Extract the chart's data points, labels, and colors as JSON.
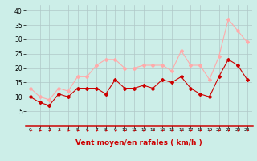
{
  "x": [
    0,
    1,
    2,
    3,
    4,
    5,
    6,
    7,
    8,
    9,
    10,
    11,
    12,
    13,
    14,
    15,
    16,
    17,
    18,
    19,
    20,
    21,
    22,
    23
  ],
  "wind_avg": [
    10,
    8,
    7,
    11,
    10,
    13,
    13,
    13,
    11,
    16,
    13,
    13,
    14,
    13,
    16,
    15,
    17,
    13,
    11,
    10,
    17,
    23,
    21,
    16
  ],
  "wind_gust": [
    13,
    10,
    9,
    13,
    12,
    17,
    17,
    21,
    23,
    23,
    20,
    20,
    21,
    21,
    21,
    19,
    26,
    21,
    21,
    16,
    24,
    37,
    33,
    29
  ],
  "color_avg": "#cc0000",
  "color_gust": "#ffaaaa",
  "bg_color": "#cceee8",
  "grid_color": "#b0c8c8",
  "xlabel": "Vent moyen/en rafales ( km/h )",
  "xlabel_color": "#cc0000",
  "axis_color": "#cc0000",
  "ylim": [
    0,
    42
  ],
  "yticks": [
    5,
    10,
    15,
    20,
    25,
    30,
    35,
    40
  ],
  "arrow_color": "#cc0000"
}
